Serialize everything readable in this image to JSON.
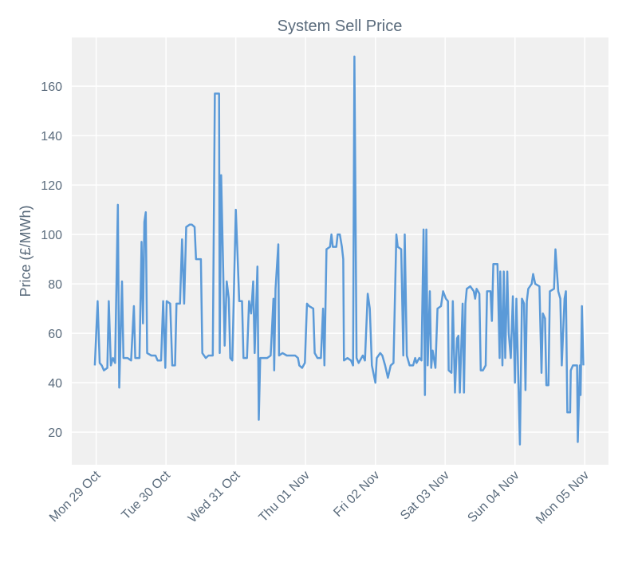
{
  "chart_data": {
    "type": "line",
    "title": "System Sell Price",
    "y_label": "Price (£/MWh)",
    "xlim": [
      -0.35,
      7.34
    ],
    "ylim": [
      6.8,
      179.7
    ],
    "xticks": [
      {
        "value": 0,
        "label": "Mon 29 Oct"
      },
      {
        "value": 1,
        "label": "Tue 30 Oct"
      },
      {
        "value": 2,
        "label": "Wed 31 Oct"
      },
      {
        "value": 3,
        "label": "Thu 01 Nov"
      },
      {
        "value": 4,
        "label": "Fri 02 Nov"
      },
      {
        "value": 5,
        "label": "Sat 03 Nov"
      },
      {
        "value": 6,
        "label": "Sun 04 Nov"
      },
      {
        "value": 7,
        "label": "Mon 05 Nov"
      }
    ],
    "yticks": [
      20,
      40,
      60,
      80,
      100,
      120,
      140,
      160
    ],
    "grid": true,
    "x": [
      -0.02,
      0.02,
      0.05,
      0.08,
      0.11,
      0.16,
      0.18,
      0.21,
      0.24,
      0.27,
      0.31,
      0.33,
      0.37,
      0.39,
      0.45,
      0.5,
      0.54,
      0.56,
      0.62,
      0.65,
      0.67,
      0.69,
      0.71,
      0.73,
      0.79,
      0.85,
      0.88,
      0.93,
      0.96,
      0.99,
      1.01,
      1.06,
      1.09,
      1.13,
      1.15,
      1.2,
      1.23,
      1.26,
      1.29,
      1.34,
      1.37,
      1.41,
      1.43,
      1.5,
      1.52,
      1.57,
      1.61,
      1.67,
      1.7,
      1.76,
      1.77,
      1.79,
      1.82,
      1.84,
      1.87,
      1.9,
      1.92,
      1.95,
      2.0,
      2.05,
      2.09,
      2.11,
      2.16,
      2.19,
      2.22,
      2.25,
      2.27,
      2.31,
      2.33,
      2.35,
      2.39,
      2.45,
      2.5,
      2.54,
      2.55,
      2.57,
      2.61,
      2.62,
      2.67,
      2.73,
      2.79,
      2.85,
      2.89,
      2.91,
      2.95,
      2.99,
      3.02,
      3.05,
      3.11,
      3.13,
      3.17,
      3.22,
      3.25,
      3.27,
      3.3,
      3.35,
      3.37,
      3.39,
      3.44,
      3.46,
      3.49,
      3.52,
      3.54,
      3.55,
      3.6,
      3.65,
      3.68,
      3.7,
      3.73,
      3.76,
      3.82,
      3.85,
      3.89,
      3.92,
      3.95,
      4.0,
      4.02,
      4.07,
      4.1,
      4.14,
      4.18,
      4.22,
      4.26,
      4.3,
      4.32,
      4.37,
      4.4,
      4.42,
      4.45,
      4.49,
      4.54,
      4.57,
      4.59,
      4.63,
      4.66,
      4.69,
      4.71,
      4.73,
      4.75,
      4.78,
      4.8,
      4.82,
      4.86,
      4.89,
      4.94,
      4.97,
      5.01,
      5.04,
      5.05,
      5.09,
      5.11,
      5.14,
      5.17,
      5.19,
      5.21,
      5.25,
      5.27,
      5.29,
      5.31,
      5.36,
      5.41,
      5.43,
      5.45,
      5.49,
      5.51,
      5.54,
      5.58,
      5.6,
      5.65,
      5.67,
      5.69,
      5.75,
      5.78,
      5.79,
      5.82,
      5.84,
      5.86,
      5.89,
      5.91,
      5.94,
      5.97,
      6.0,
      6.02,
      6.07,
      6.1,
      6.13,
      6.15,
      6.17,
      6.19,
      6.24,
      6.26,
      6.29,
      6.35,
      6.38,
      6.4,
      6.43,
      6.45,
      6.48,
      6.5,
      6.56,
      6.58,
      6.62,
      6.65,
      6.67,
      6.71,
      6.73,
      6.75,
      6.79,
      6.8,
      6.83,
      6.87,
      6.89,
      6.9,
      6.93,
      6.94,
      6.96,
      6.98
    ],
    "series": [
      {
        "name": "System Sell Price",
        "color": "#5b9ad8",
        "values": [
          47,
          73,
          48,
          47,
          45,
          46,
          73,
          47,
          50,
          48,
          112,
          38,
          81,
          50,
          50,
          49,
          71,
          50,
          50,
          97,
          64,
          105,
          109,
          52,
          51,
          51,
          49,
          49,
          73,
          46,
          73,
          72,
          47,
          47,
          72,
          72,
          98,
          72,
          103,
          104,
          104,
          103,
          90,
          90,
          52,
          50,
          51,
          51,
          157,
          157,
          52,
          124,
          85,
          55,
          81,
          74,
          50,
          49,
          110,
          73,
          73,
          50,
          50,
          73,
          68,
          81,
          52,
          87,
          25,
          50,
          50,
          50,
          51,
          74,
          45,
          78,
          96,
          51,
          52,
          51,
          51,
          51,
          50,
          47,
          46,
          48,
          72,
          71,
          70,
          52,
          50,
          50,
          70,
          47,
          94,
          95,
          100,
          95,
          95,
          100,
          100,
          95,
          90,
          49,
          50,
          49,
          47,
          172,
          50,
          48,
          51,
          49,
          76,
          70,
          47,
          40,
          50,
          52,
          51,
          47,
          42,
          47,
          48,
          100,
          95,
          94,
          51,
          100,
          51,
          47,
          47,
          50,
          48,
          50,
          49,
          102,
          35,
          102,
          47,
          77,
          46,
          53,
          46,
          70,
          71,
          77,
          74,
          73,
          45,
          44,
          73,
          36,
          58,
          59,
          36,
          72,
          36,
          72,
          78,
          79,
          77,
          74,
          78,
          76,
          45,
          45,
          47,
          77,
          77,
          65,
          88,
          88,
          50,
          85,
          47,
          85,
          50,
          85,
          60,
          50,
          75,
          40,
          74,
          15,
          74,
          72,
          37,
          73,
          78,
          80,
          84,
          80,
          79,
          44,
          68,
          66,
          39,
          39,
          77,
          78,
          94,
          77,
          74,
          47,
          74,
          77,
          28,
          28,
          45,
          47,
          47,
          47,
          16,
          47,
          35,
          71,
          47
        ]
      }
    ]
  }
}
